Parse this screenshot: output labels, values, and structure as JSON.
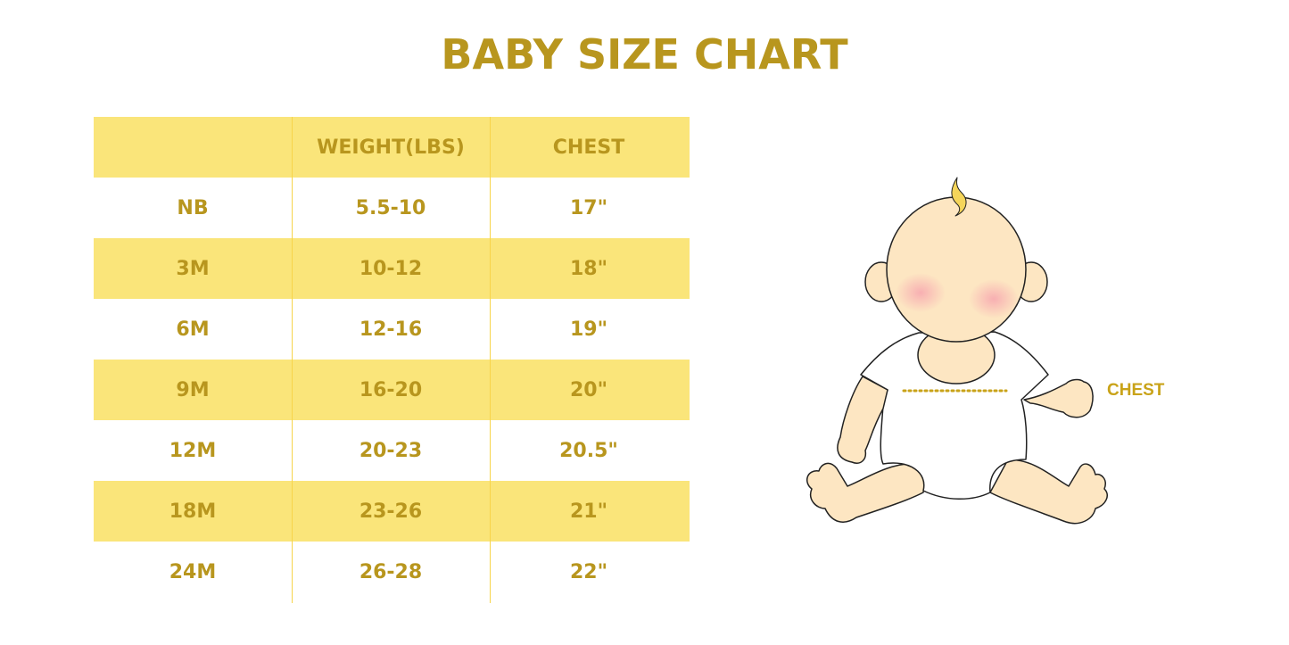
{
  "title": "BABY SIZE CHART",
  "table": {
    "headers": [
      "",
      "WEIGHT(LBS)",
      "CHEST"
    ],
    "rows": [
      [
        "NB",
        "5.5-10",
        "17\""
      ],
      [
        "3M",
        "10-12",
        "18\""
      ],
      [
        "6M",
        "12-16",
        "19\""
      ],
      [
        "9M",
        "16-20",
        "20\""
      ],
      [
        "12M",
        "20-23",
        "20.5\""
      ],
      [
        "18M",
        "23-26",
        "21\""
      ],
      [
        "24M",
        "26-28",
        "22\""
      ]
    ]
  },
  "illustration": {
    "chest_label": "CHEST"
  },
  "colors": {
    "accent": "#b8961e",
    "stripe": "#fae57a",
    "skin": "#fde6c2"
  }
}
